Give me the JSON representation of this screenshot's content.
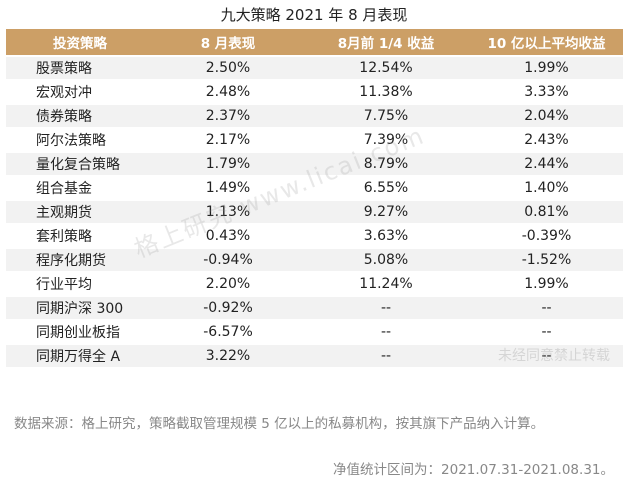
{
  "title": "九大策略 2021 年 8 月表现",
  "table": {
    "headers": [
      "投资策略",
      "8 月表现",
      "8月前 1/4 收益",
      "10 亿以上平均收益"
    ],
    "rows": [
      {
        "strategy": "股票策略",
        "aug": "2.50%",
        "q1": "12.54%",
        "big": "1.99%"
      },
      {
        "strategy": "宏观对冲",
        "aug": "2.48%",
        "q1": "11.38%",
        "big": "3.33%"
      },
      {
        "strategy": "债券策略",
        "aug": "2.37%",
        "q1": "7.75%",
        "big": "2.04%"
      },
      {
        "strategy": "阿尔法策略",
        "aug": "2.17%",
        "q1": "7.39%",
        "big": "2.43%"
      },
      {
        "strategy": "量化复合策略",
        "aug": "1.79%",
        "q1": "8.79%",
        "big": "2.44%"
      },
      {
        "strategy": "组合基金",
        "aug": "1.49%",
        "q1": "6.55%",
        "big": "1.40%"
      },
      {
        "strategy": "主观期货",
        "aug": "1.13%",
        "q1": "9.27%",
        "big": "0.81%"
      },
      {
        "strategy": "套利策略",
        "aug": "0.43%",
        "q1": "3.63%",
        "big": "-0.39%"
      },
      {
        "strategy": "程序化期货",
        "aug": "-0.94%",
        "q1": "5.08%",
        "big": "-1.52%"
      },
      {
        "strategy": "行业平均",
        "aug": "2.20%",
        "q1": "11.24%",
        "big": "1.99%"
      },
      {
        "strategy": "同期沪深 300",
        "aug": "-0.92%",
        "q1": "--",
        "big": "--"
      },
      {
        "strategy": "同期创业板指",
        "aug": "-6.57%",
        "q1": "--",
        "big": "--"
      },
      {
        "strategy": "同期万得全 A",
        "aug": "3.22%",
        "q1": "--",
        "big": "--"
      }
    ]
  },
  "note": "数据来源：格上研究，策略截取管理规模 5 亿以上的私募机构，按其旗下产品纳入计算。",
  "period": "净值统计区间为：2021.07.31-2021.08.31。",
  "watermark": {
    "main": "格上研究 www.licai.com",
    "sub": "未经同意禁止转载"
  }
}
